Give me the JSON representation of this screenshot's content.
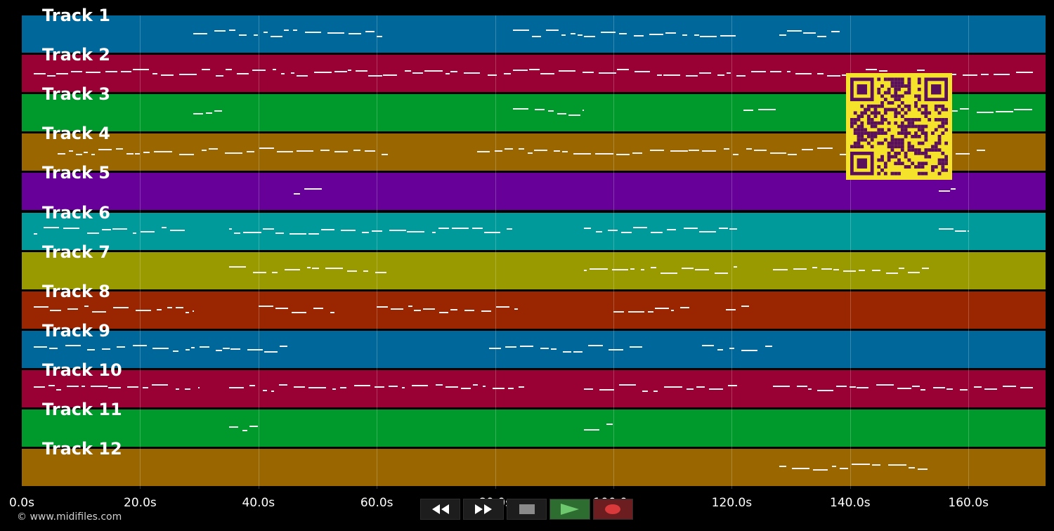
{
  "tracks": [
    {
      "label": "Track 1",
      "color": "#00679a"
    },
    {
      "label": "Track 2",
      "color": "#990033"
    },
    {
      "label": "Track 3",
      "color": "#00992b"
    },
    {
      "label": "Track 4",
      "color": "#996600"
    },
    {
      "label": "Track 5",
      "color": "#660099"
    },
    {
      "label": "Track 6",
      "color": "#009a9a"
    },
    {
      "label": "Track 7",
      "color": "#999900"
    },
    {
      "label": "Track 8",
      "color": "#992600"
    },
    {
      "label": "Track 9",
      "color": "#00679a"
    },
    {
      "label": "Track 10",
      "color": "#990033"
    },
    {
      "label": "Track 11",
      "color": "#00992b"
    },
    {
      "label": "Track 12",
      "color": "#996600"
    }
  ],
  "timeline": {
    "ticks": [
      "0.0s",
      "20.0s",
      "40.0s",
      "60.0s",
      "80.0s",
      "100.0s",
      "120.0s",
      "140.0s",
      "160.0s"
    ],
    "tick_values": [
      0,
      20,
      40,
      60,
      80,
      100,
      120,
      140,
      160
    ],
    "max_seconds": 173
  },
  "note_segments": [
    {
      "track": 0,
      "ranges": [
        [
          29,
          35
        ],
        [
          35,
          61
        ],
        [
          83,
          95
        ],
        [
          95,
          121
        ],
        [
          128,
          139
        ]
      ]
    },
    {
      "track": 1,
      "ranges": [
        [
          2,
          171
        ]
      ]
    },
    {
      "track": 2,
      "ranges": [
        [
          29,
          34
        ],
        [
          83,
          95
        ],
        [
          122,
          128
        ],
        [
          147,
          171
        ]
      ]
    },
    {
      "track": 3,
      "ranges": [
        [
          6,
          62
        ],
        [
          77,
          163
        ]
      ]
    },
    {
      "track": 4,
      "ranges": [
        [
          46,
          51
        ],
        [
          155,
          158
        ]
      ]
    },
    {
      "track": 5,
      "ranges": [
        [
          2,
          28
        ],
        [
          35,
          83
        ],
        [
          95,
          121
        ],
        [
          155,
          160
        ]
      ]
    },
    {
      "track": 6,
      "ranges": [
        [
          35,
          62
        ],
        [
          95,
          121
        ],
        [
          127,
          154
        ]
      ]
    },
    {
      "track": 7,
      "ranges": [
        [
          2,
          29
        ],
        [
          40,
          53
        ],
        [
          60,
          84
        ],
        [
          100,
          113
        ],
        [
          119,
          123
        ]
      ]
    },
    {
      "track": 8,
      "ranges": [
        [
          2,
          34
        ],
        [
          34,
          45
        ],
        [
          79,
          105
        ],
        [
          115,
          127
        ]
      ]
    },
    {
      "track": 9,
      "ranges": [
        [
          2,
          30
        ],
        [
          35,
          85
        ],
        [
          95,
          121
        ],
        [
          127,
          171
        ]
      ]
    },
    {
      "track": 10,
      "ranges": [
        [
          35,
          40
        ],
        [
          95,
          100
        ]
      ]
    },
    {
      "track": 11,
      "ranges": [
        [
          128,
          154
        ]
      ]
    }
  ],
  "transport": {
    "rewind_icon": "rewind-icon",
    "forward_icon": "fast-forward-icon",
    "stop_icon": "stop-icon",
    "play_icon": "play-icon",
    "record_icon": "record-icon"
  },
  "qr_code": {
    "color": "#5a0f5a",
    "background": "#f5e22b"
  },
  "footer": {
    "copyright": "© www.midifiles.com"
  }
}
